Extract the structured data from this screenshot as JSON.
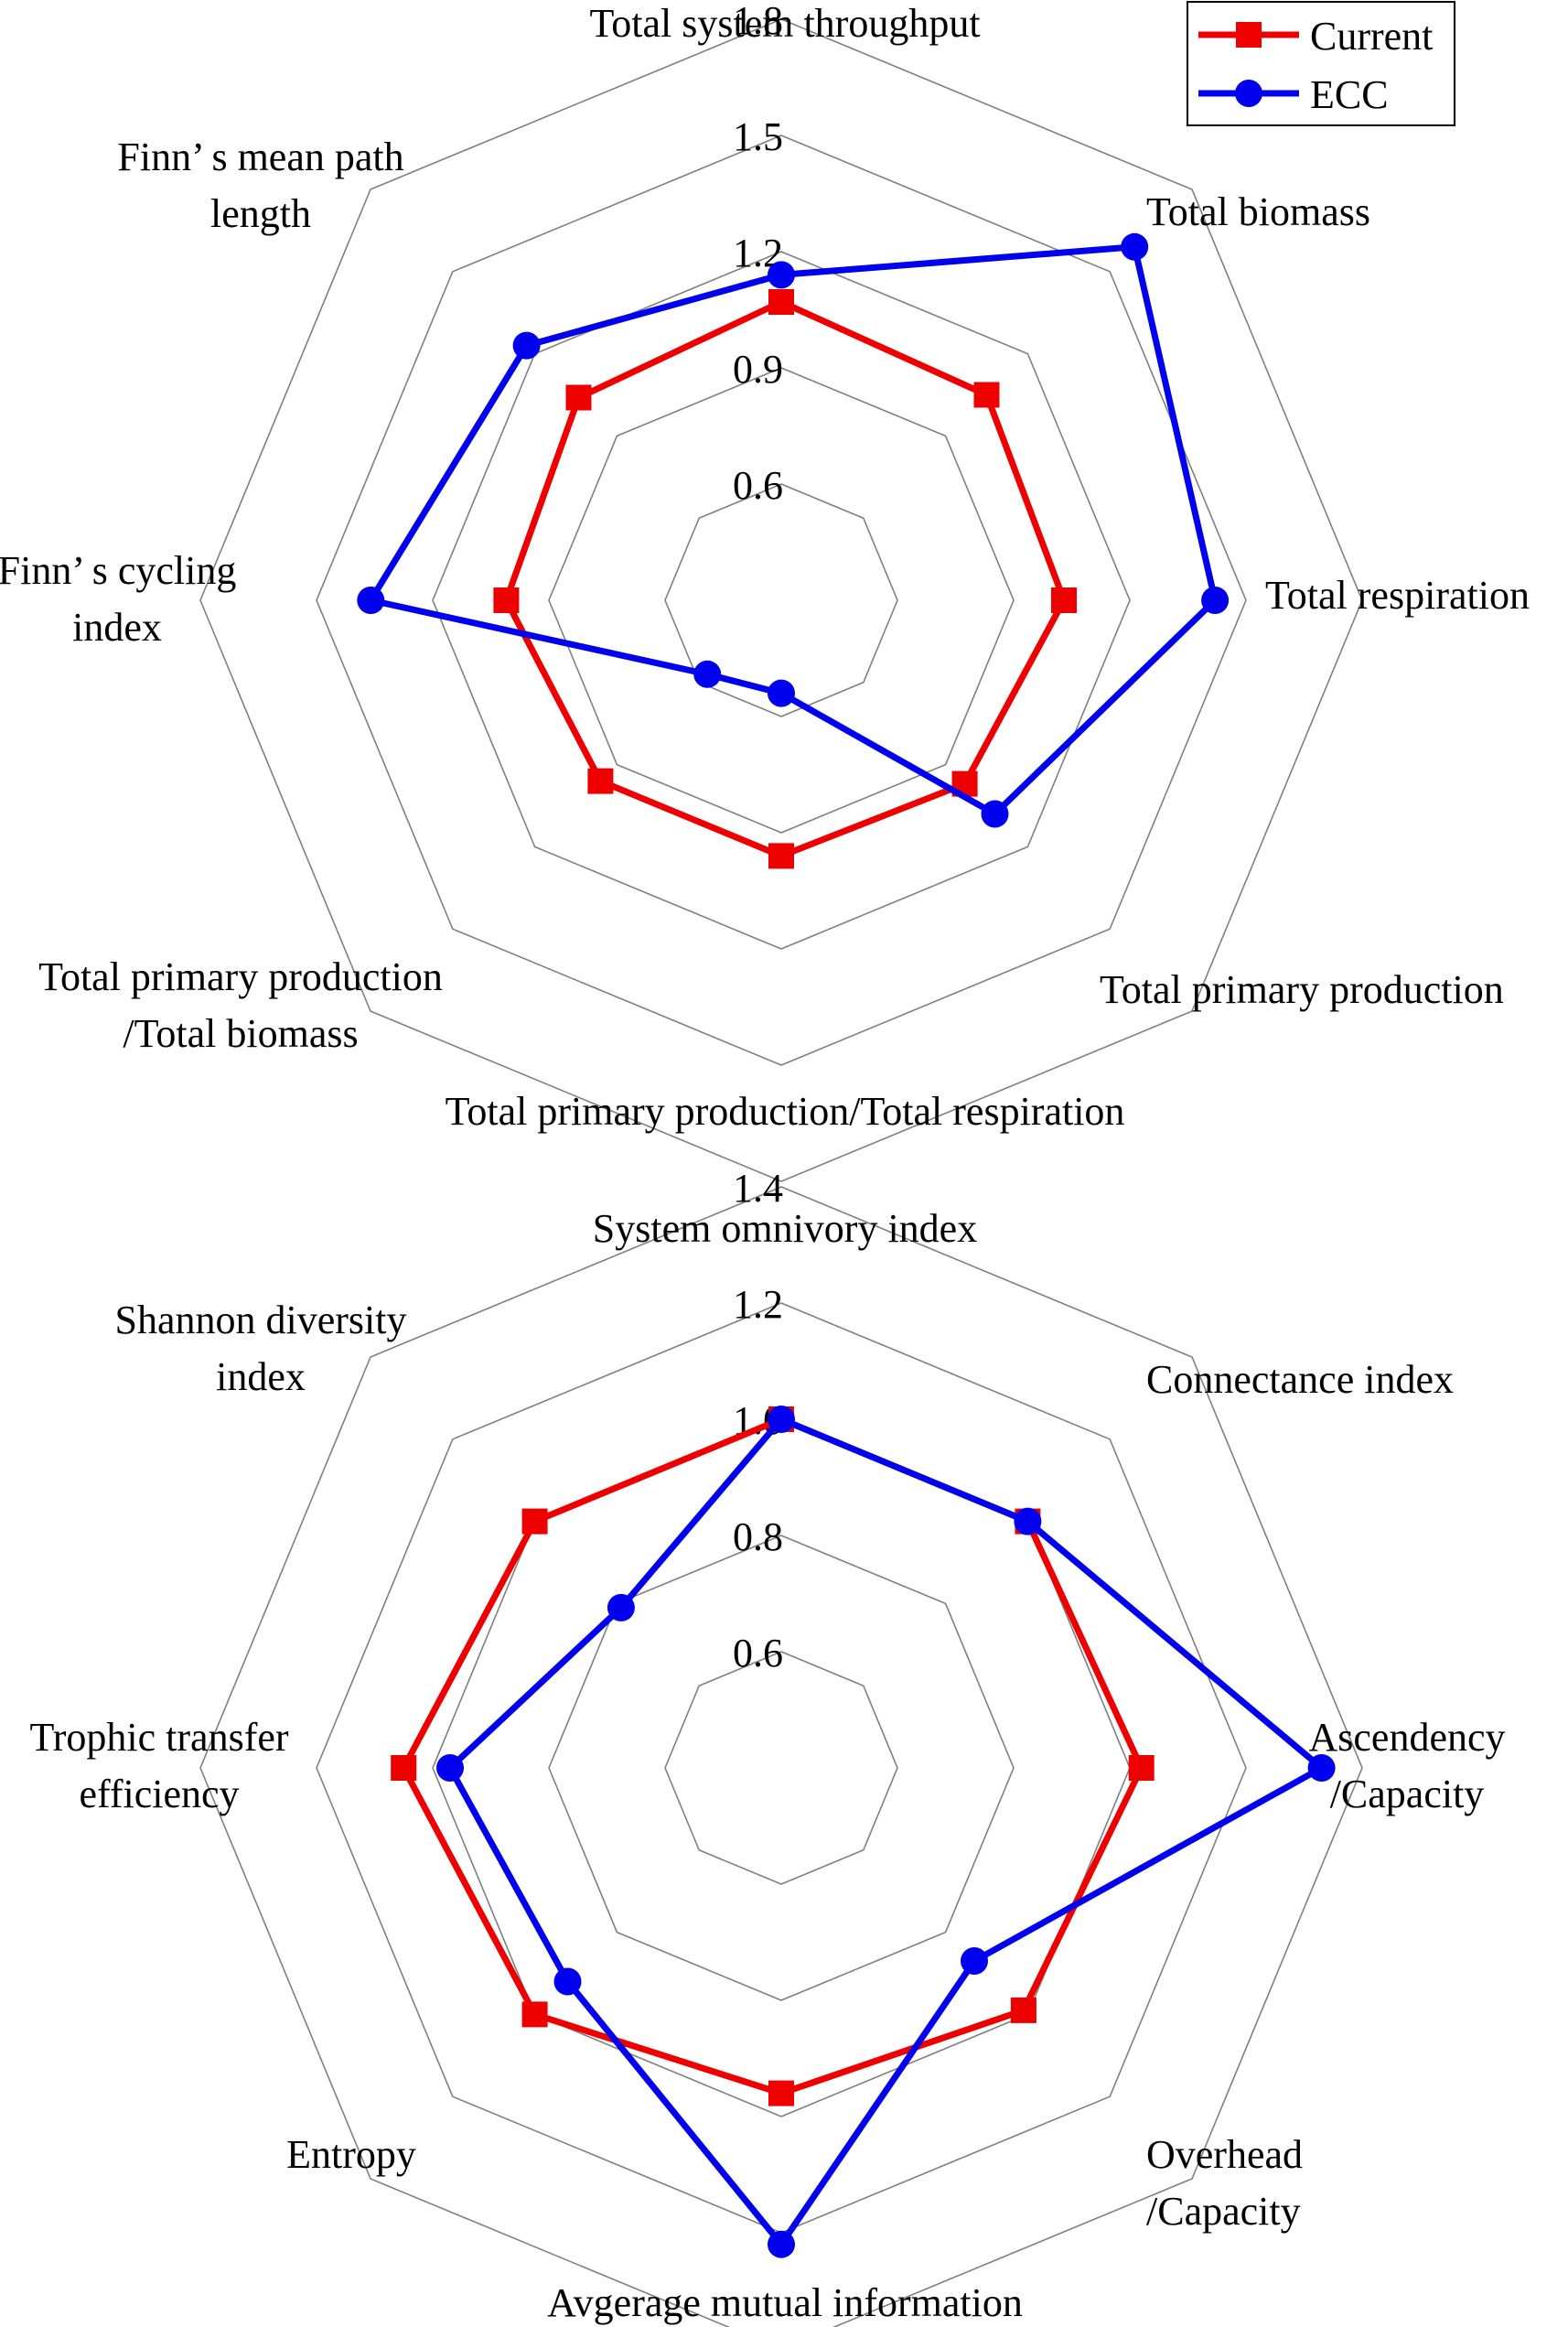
{
  "colors": {
    "current": "#ee0000",
    "ecc": "#0000ee",
    "grid": "#808080"
  },
  "legend": [
    {
      "key": "current",
      "label": "Current",
      "marker": "square"
    },
    {
      "key": "ecc",
      "label": "ECC",
      "marker": "circle"
    }
  ],
  "chart_data": [
    {
      "type": "radar",
      "rings": [
        0.6,
        0.9,
        1.2,
        1.5,
        1.8
      ],
      "range": [
        0.6,
        1.8
      ],
      "axes": [
        [
          "Total system throughput"
        ],
        [
          "Total biomass"
        ],
        [
          "Total respiration"
        ],
        [
          "Total primary production"
        ],
        [
          "Total primary production/Total respiration"
        ],
        [
          "Total primary production",
          "/Total biomass"
        ],
        [
          "Finn’ s cycling",
          "index"
        ],
        [
          "Finn’ s mean path",
          "length"
        ]
      ],
      "series": [
        {
          "name": "Current",
          "values": [
            1.07,
            1.05,
            1.03,
            0.97,
            0.96,
            0.96,
            1.01,
            1.04
          ]
        },
        {
          "name": "ECC",
          "values": [
            1.14,
            1.59,
            1.42,
            1.08,
            0.54,
            0.57,
            1.36,
            1.23
          ]
        }
      ]
    },
    {
      "type": "radar",
      "rings": [
        0.6,
        0.8,
        1.0,
        1.2,
        1.4
      ],
      "range": [
        0.6,
        1.4
      ],
      "axes": [
        [
          "System omnivory index"
        ],
        [
          "Connectance index"
        ],
        [
          "Ascendency",
          "/Capacity"
        ],
        [
          "Overhead",
          "/Capacity"
        ],
        [
          "Avgerage mutual information"
        ],
        [
          "Entropy"
        ],
        [
          "Trophic transfer",
          "efficiency"
        ],
        [
          "Shannon diversity",
          "index"
        ]
      ],
      "series": [
        {
          "name": "Current",
          "values": [
            1.0,
            1.0,
            1.02,
            0.99,
            0.96,
            1.0,
            1.05,
            1.0
          ]
        },
        {
          "name": "ECC",
          "values": [
            1.0,
            1.0,
            1.33,
            0.87,
            1.22,
            0.92,
            0.97,
            0.79
          ]
        }
      ]
    }
  ]
}
